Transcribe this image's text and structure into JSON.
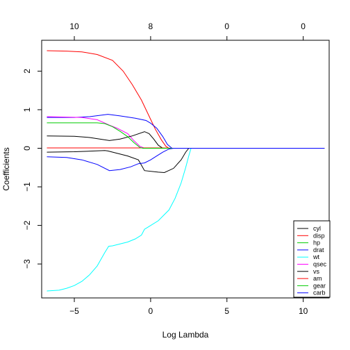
{
  "chart_data": {
    "type": "line",
    "xlabel": "Log Lambda",
    "ylabel": "Coefficients",
    "xlim": [
      -7.14,
      11.7
    ],
    "ylim": [
      -3.88,
      2.8
    ],
    "grid": false,
    "legend_position": "bottom-right",
    "bottom_ticks": [
      -5,
      0,
      5,
      10
    ],
    "left_ticks": [
      -3,
      -2,
      -1,
      0,
      1,
      2
    ],
    "top_ticks": [
      {
        "x": -5,
        "label": "10"
      },
      {
        "x": 0,
        "label": "8"
      },
      {
        "x": 5,
        "label": "0"
      },
      {
        "x": 10,
        "label": "0"
      }
    ],
    "series": [
      {
        "name": "cyl",
        "color": "#000000",
        "points": [
          [
            -6.8,
            -0.1
          ],
          [
            -5,
            -0.09
          ],
          [
            -3,
            -0.06
          ],
          [
            -2.8,
            -0.07
          ],
          [
            -1.5,
            -0.2
          ],
          [
            -0.8,
            -0.3
          ],
          [
            -0.4,
            -0.58
          ],
          [
            0.5,
            -0.62
          ],
          [
            0.9,
            -0.63
          ],
          [
            1.5,
            -0.52
          ],
          [
            2.0,
            -0.3
          ],
          [
            2.3,
            -0.1
          ],
          [
            2.5,
            0
          ],
          [
            11.4,
            0
          ]
        ]
      },
      {
        "name": "disp",
        "color": "#FF0000",
        "points": [
          [
            -6.8,
            2.53
          ],
          [
            -5.5,
            2.52
          ],
          [
            -4.5,
            2.5
          ],
          [
            -3.5,
            2.43
          ],
          [
            -2.5,
            2.28
          ],
          [
            -1.8,
            2.0
          ],
          [
            -1.2,
            1.65
          ],
          [
            -0.6,
            1.25
          ],
          [
            -0.3,
            1.0
          ],
          [
            0,
            0.75
          ],
          [
            0.3,
            0.5
          ],
          [
            0.7,
            0.22
          ],
          [
            1.0,
            0.05
          ],
          [
            1.2,
            0
          ],
          [
            11.4,
            0
          ]
        ]
      },
      {
        "name": "hp",
        "color": "#00CC00",
        "points": [
          [
            -6.8,
            0.01
          ],
          [
            -0.2,
            0.01
          ],
          [
            0.5,
            0
          ],
          [
            11.4,
            0
          ]
        ]
      },
      {
        "name": "drat",
        "color": "#0000FF",
        "points": [
          [
            -6.8,
            0.8
          ],
          [
            -5,
            0.8
          ],
          [
            -4,
            0.82
          ],
          [
            -2.8,
            0.88
          ],
          [
            -2,
            0.84
          ],
          [
            -1,
            0.78
          ],
          [
            -0.3,
            0.72
          ],
          [
            0,
            0.65
          ],
          [
            0.4,
            0.52
          ],
          [
            0.8,
            0.3
          ],
          [
            1.1,
            0.1
          ],
          [
            1.4,
            0
          ],
          [
            11.4,
            0
          ]
        ]
      },
      {
        "name": "wt",
        "color": "#00FFFF",
        "points": [
          [
            -6.8,
            -3.7
          ],
          [
            -6.0,
            -3.68
          ],
          [
            -5.5,
            -3.63
          ],
          [
            -5.0,
            -3.56
          ],
          [
            -4.5,
            -3.45
          ],
          [
            -4.0,
            -3.28
          ],
          [
            -3.5,
            -3.05
          ],
          [
            -3.0,
            -2.7
          ],
          [
            -2.75,
            -2.54
          ],
          [
            -2.5,
            -2.53
          ],
          [
            -1.5,
            -2.43
          ],
          [
            -1,
            -2.35
          ],
          [
            -0.6,
            -2.25
          ],
          [
            -0.4,
            -2.1
          ],
          [
            -0.2,
            -2.05
          ],
          [
            0.5,
            -1.88
          ],
          [
            1.2,
            -1.6
          ],
          [
            1.6,
            -1.3
          ],
          [
            2.0,
            -0.9
          ],
          [
            2.3,
            -0.5
          ],
          [
            2.5,
            -0.2
          ],
          [
            2.65,
            0
          ],
          [
            11.4,
            0
          ]
        ]
      },
      {
        "name": "qsec",
        "color": "#FF00FF",
        "points": [
          [
            -6.8,
            0.82
          ],
          [
            -4.5,
            0.8
          ],
          [
            -3.5,
            0.74
          ],
          [
            -2.7,
            0.6
          ],
          [
            -2.2,
            0.52
          ],
          [
            -1.5,
            0.38
          ],
          [
            -1.1,
            0.2
          ],
          [
            -0.7,
            0.05
          ],
          [
            -0.4,
            0
          ],
          [
            11.4,
            0
          ]
        ]
      },
      {
        "name": "vs",
        "color": "#000000",
        "points": [
          [
            -6.8,
            0.32
          ],
          [
            -5,
            0.31
          ],
          [
            -4,
            0.28
          ],
          [
            -2.7,
            0.2
          ],
          [
            -2,
            0.24
          ],
          [
            -1.2,
            0.32
          ],
          [
            -0.4,
            0.43
          ],
          [
            -0.1,
            0.38
          ],
          [
            0.2,
            0.24
          ],
          [
            0.5,
            0.08
          ],
          [
            0.8,
            0
          ],
          [
            11.4,
            0
          ]
        ]
      },
      {
        "name": "am",
        "color": "#FF0000",
        "points": [
          [
            -6.8,
            0.01
          ],
          [
            0.8,
            0.01
          ],
          [
            1.5,
            0
          ],
          [
            11.4,
            0
          ]
        ]
      },
      {
        "name": "gear",
        "color": "#00CC00",
        "points": [
          [
            -6.8,
            0.66
          ],
          [
            -3.5,
            0.66
          ],
          [
            -3.0,
            0.64
          ],
          [
            -2.5,
            0.56
          ],
          [
            -2.0,
            0.44
          ],
          [
            -1.5,
            0.3
          ],
          [
            -1.1,
            0.15
          ],
          [
            -0.7,
            0.02
          ],
          [
            -0.5,
            0
          ],
          [
            11.4,
            0
          ]
        ]
      },
      {
        "name": "carb",
        "color": "#0000FF",
        "points": [
          [
            -6.8,
            -0.22
          ],
          [
            -5.5,
            -0.24
          ],
          [
            -4.5,
            -0.3
          ],
          [
            -3.5,
            -0.42
          ],
          [
            -2.7,
            -0.58
          ],
          [
            -2,
            -0.55
          ],
          [
            -1.3,
            -0.48
          ],
          [
            -0.8,
            -0.4
          ],
          [
            -0.4,
            -0.38
          ],
          [
            0,
            -0.3
          ],
          [
            0.4,
            -0.2
          ],
          [
            0.8,
            -0.1
          ],
          [
            1.2,
            -0.02
          ],
          [
            1.5,
            0
          ],
          [
            11.4,
            0
          ]
        ]
      }
    ]
  }
}
